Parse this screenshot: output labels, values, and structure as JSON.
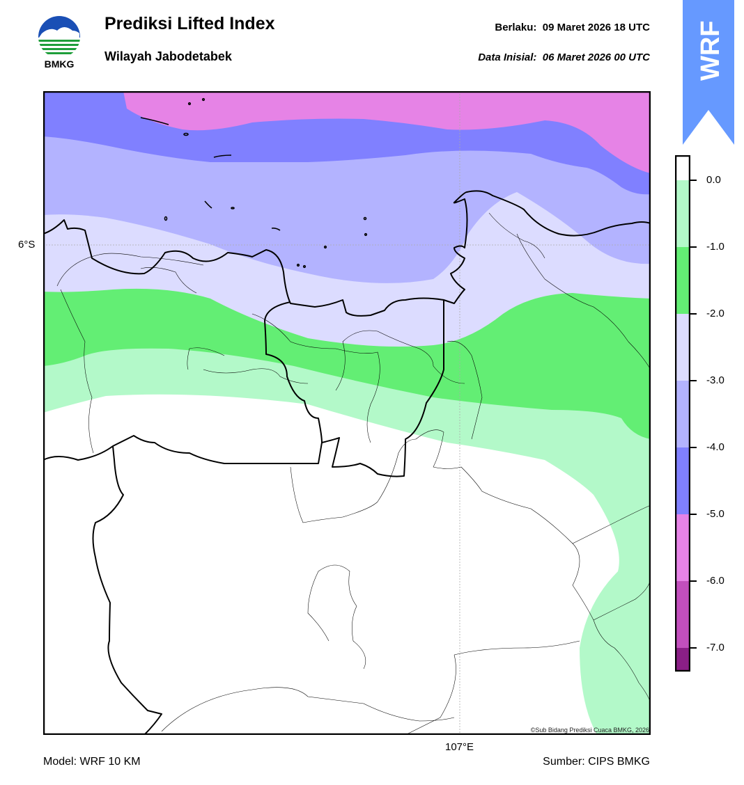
{
  "header": {
    "title": "Prediksi Lifted Index",
    "subtitle": "Wilayah Jabodetabek",
    "valid_label": "Berlaku:",
    "valid_time": "09 Maret 2026 18 UTC",
    "init_label": "Data Inisial:",
    "init_time": "06 Maret 2026 00 UTC"
  },
  "logo": {
    "text": "BMKG",
    "icon": "bmkg-logo-icon"
  },
  "badge": {
    "text": "WRF",
    "color": "#6699ff",
    "icon": "wrf-arrow-badge-icon"
  },
  "map": {
    "lat_label": "6°S",
    "lon_label": "107°E",
    "copyright": "©Sub Bidang Prediksi Cuaca BMKG, 2026"
  },
  "colorbar": {
    "ticks": [
      {
        "value": 0.0,
        "label": "0.0"
      },
      {
        "value": -1.0,
        "label": "-1.0"
      },
      {
        "value": -2.0,
        "label": "-2.0"
      },
      {
        "value": -3.0,
        "label": "-3.0"
      },
      {
        "value": -4.0,
        "label": "-4.0"
      },
      {
        "value": -5.0,
        "label": "-5.0"
      },
      {
        "value": -6.0,
        "label": "-6.0"
      },
      {
        "value": -7.0,
        "label": "-7.0"
      }
    ],
    "bands": [
      {
        "from": 0.0,
        "to": 0.35,
        "color": "#ffffff"
      },
      {
        "from": -1.0,
        "to": 0.0,
        "color": "#b3f9c9"
      },
      {
        "from": -2.0,
        "to": -1.0,
        "color": "#63ee74"
      },
      {
        "from": -3.0,
        "to": -2.0,
        "color": "#dcdcff"
      },
      {
        "from": -4.0,
        "to": -3.0,
        "color": "#b3b3ff"
      },
      {
        "from": -5.0,
        "to": -4.0,
        "color": "#8080ff"
      },
      {
        "from": -6.0,
        "to": -5.0,
        "color": "#e683e6"
      },
      {
        "from": -7.0,
        "to": -6.0,
        "color": "#c24fbd"
      },
      {
        "from": -7.35,
        "to": -7.0,
        "color": "#8a1f86"
      }
    ]
  },
  "footer": {
    "model": "Model: WRF 10 KM",
    "source": "Sumber: CIPS BMKG"
  }
}
